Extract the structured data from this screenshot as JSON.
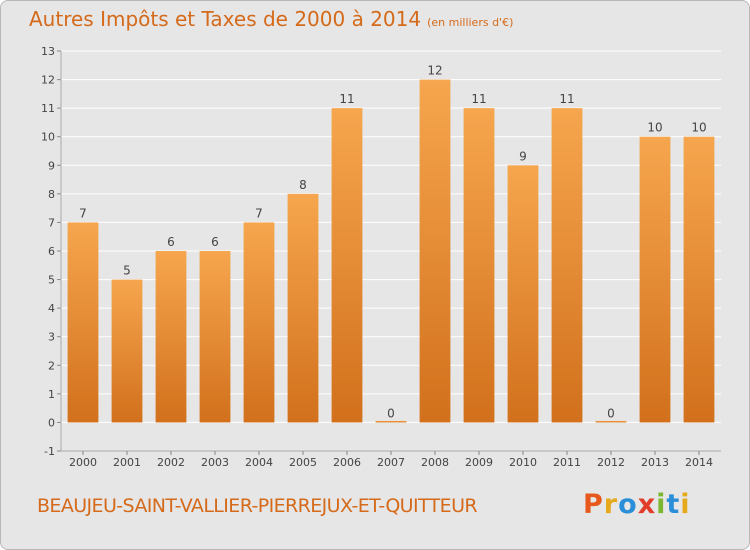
{
  "header": {
    "title": "Autres Impôts et Taxes de 2000 à 2014",
    "unit": "(en milliers d'€)"
  },
  "footer": {
    "commune": "BEAUJEU-SAINT-VALLIER-PIERREJUX-ET-QUITTEUR",
    "logo_letters": [
      "P",
      "r",
      "o",
      "x",
      "i",
      "t",
      "i"
    ],
    "logo_colors": [
      "#e6581c",
      "#e6a91c",
      "#2a8fd8",
      "#e23c2a",
      "#7cb82f",
      "#2a8fd8",
      "#e6a91c"
    ]
  },
  "colors": {
    "bar_top": "#f6a64e",
    "bar_bottom": "#d2701c",
    "grid": "#ffffff",
    "axis_text": "#444444",
    "accent": "#d46a1a"
  },
  "chart_data": {
    "type": "bar",
    "title": "Autres Impôts et Taxes de 2000 à 2014",
    "subtitle": "(en milliers d'€)",
    "xlabel": "",
    "ylabel": "",
    "categories": [
      "2000",
      "2001",
      "2002",
      "2003",
      "2004",
      "2005",
      "2006",
      "2007",
      "2008",
      "2009",
      "2010",
      "2011",
      "2012",
      "2013",
      "2014"
    ],
    "values": [
      7,
      5,
      6,
      6,
      7,
      8,
      11,
      0,
      12,
      11,
      9,
      11,
      0,
      10,
      10
    ],
    "ylim": [
      -1,
      13
    ],
    "yticks": [
      "-1",
      "0",
      "1",
      "2",
      "3",
      "4",
      "5",
      "6",
      "7",
      "8",
      "9",
      "10",
      "11",
      "12",
      "13"
    ],
    "grid": true,
    "legend": "none"
  }
}
